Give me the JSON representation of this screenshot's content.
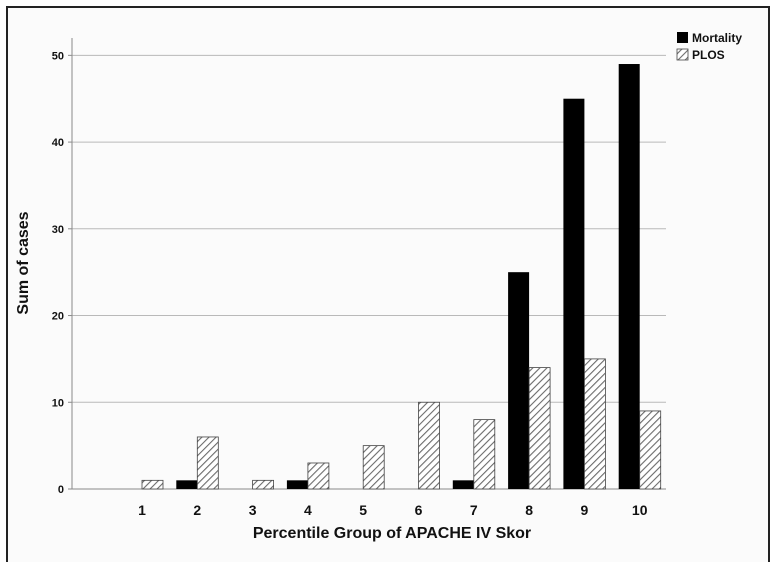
{
  "chart_data": {
    "type": "bar",
    "title": "",
    "xlabel": "Percentile Group of APACHE IV Skor",
    "ylabel": "Sum of cases",
    "categories": [
      "1",
      "2",
      "3",
      "4",
      "5",
      "6",
      "7",
      "8",
      "9",
      "10"
    ],
    "ylim": [
      0,
      52
    ],
    "yticks": [
      "0",
      "10",
      "20",
      "30",
      "40",
      "50"
    ],
    "grid": true,
    "legend_position": "top-right",
    "series": [
      {
        "name": "Mortality",
        "fill": "solid",
        "color": "#000000",
        "values": [
          0,
          1,
          0,
          1,
          0,
          0,
          1,
          25,
          45,
          49
        ]
      },
      {
        "name": "PLOS",
        "fill": "hatched",
        "color": "#777777",
        "values": [
          1,
          6,
          1,
          3,
          5,
          10,
          8,
          14,
          15,
          9
        ]
      }
    ]
  }
}
